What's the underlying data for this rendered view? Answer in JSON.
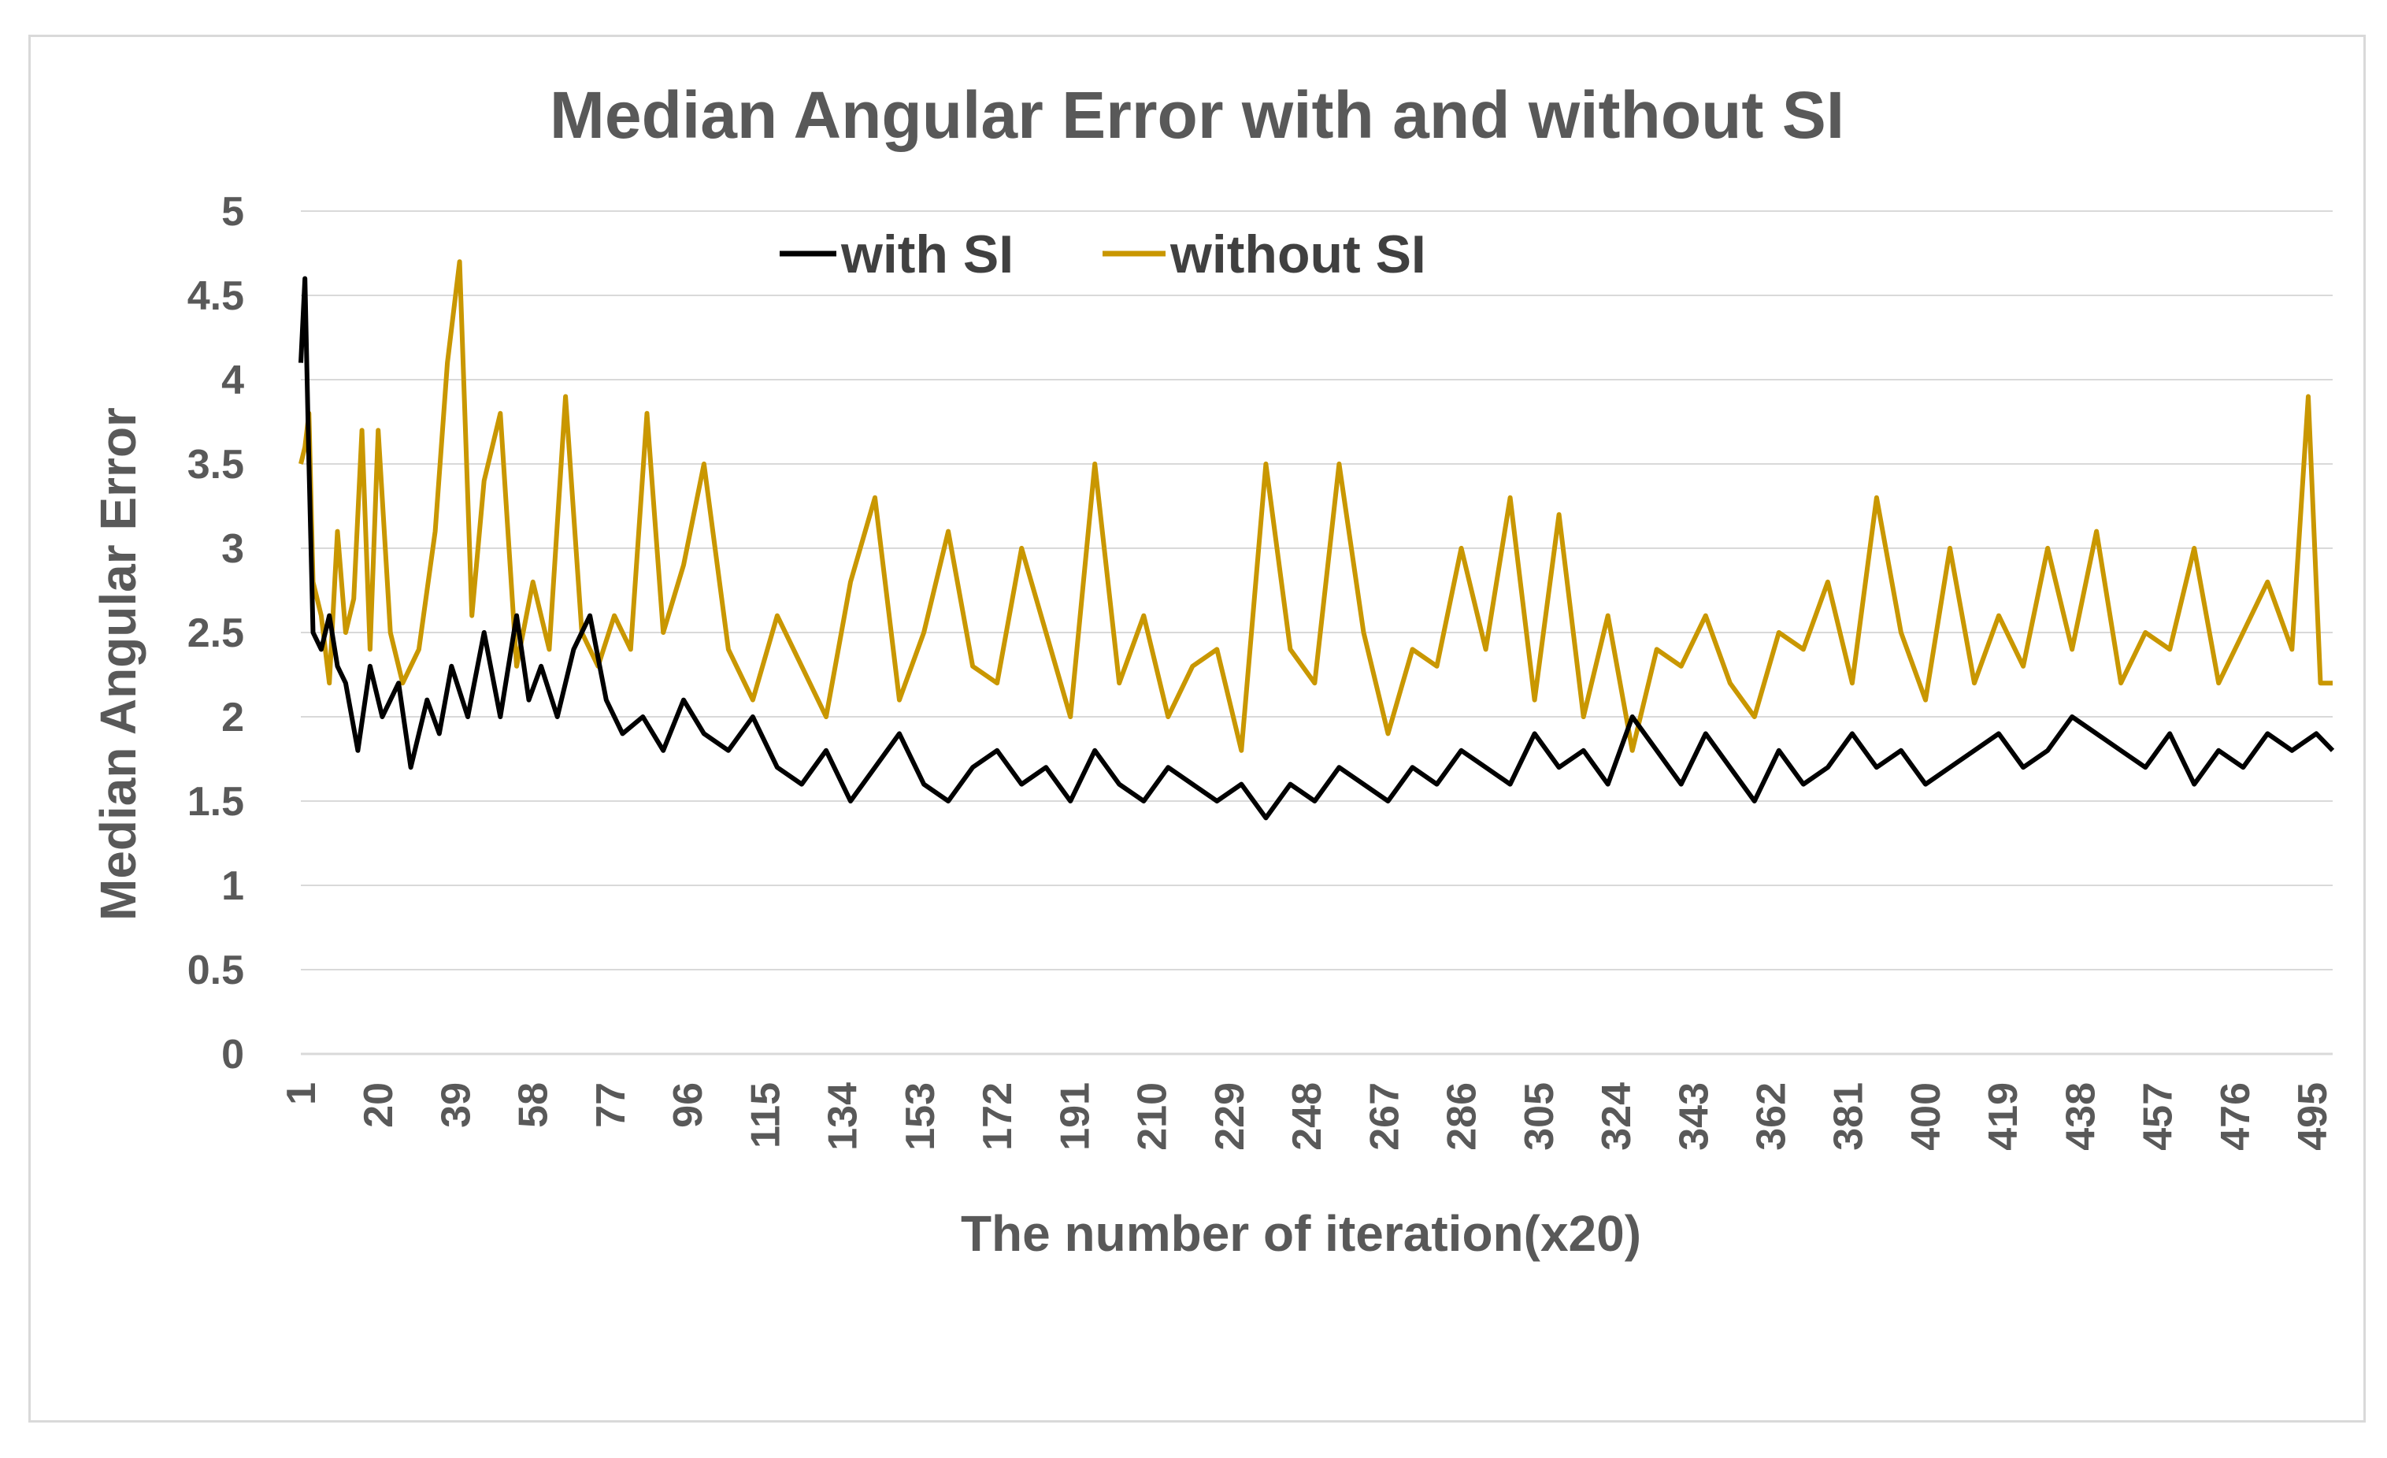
{
  "chart_data": {
    "type": "line",
    "title": "Median Angular Error with and without SI",
    "xlabel": "The number of iteration(x20)",
    "ylabel": "Median  Angular Error",
    "ylim": [
      0,
      5
    ],
    "yticks": [
      "0",
      "0.5",
      "1",
      "1.5",
      "2",
      "2.5",
      "3",
      "3.5",
      "4",
      "4.5",
      "5"
    ],
    "xlim": [
      1,
      500
    ],
    "xticks": [
      "1",
      "20",
      "39",
      "58",
      "77",
      "96",
      "115",
      "134",
      "153",
      "172",
      "191",
      "210",
      "229",
      "248",
      "267",
      "286",
      "305",
      "324",
      "343",
      "362",
      "381",
      "400",
      "419",
      "438",
      "457",
      "476",
      "495"
    ],
    "grid": true,
    "legend_position": "top",
    "series": [
      {
        "name": "with SI",
        "color": "#000000",
        "x": [
          1,
          2,
          3,
          4,
          6,
          8,
          10,
          12,
          15,
          18,
          21,
          25,
          28,
          32,
          35,
          38,
          42,
          46,
          50,
          54,
          57,
          60,
          64,
          68,
          72,
          76,
          80,
          85,
          90,
          95,
          100,
          106,
          112,
          118,
          124,
          130,
          136,
          142,
          148,
          154,
          160,
          166,
          172,
          178,
          184,
          190,
          196,
          202,
          208,
          214,
          220,
          226,
          232,
          238,
          244,
          250,
          256,
          262,
          268,
          274,
          280,
          286,
          292,
          298,
          304,
          310,
          316,
          322,
          328,
          334,
          340,
          346,
          352,
          358,
          364,
          370,
          376,
          382,
          388,
          394,
          400,
          406,
          412,
          418,
          424,
          430,
          436,
          442,
          448,
          454,
          460,
          466,
          472,
          478,
          484,
          490,
          496,
          500
        ],
        "y": [
          4.1,
          4.6,
          3.5,
          2.5,
          2.4,
          2.6,
          2.3,
          2.2,
          1.8,
          2.3,
          2.0,
          2.2,
          1.7,
          2.1,
          1.9,
          2.3,
          2.0,
          2.5,
          2.0,
          2.6,
          2.1,
          2.3,
          2.0,
          2.4,
          2.6,
          2.1,
          1.9,
          2.0,
          1.8,
          2.1,
          1.9,
          1.8,
          2.0,
          1.7,
          1.6,
          1.8,
          1.5,
          1.7,
          1.9,
          1.6,
          1.5,
          1.7,
          1.8,
          1.6,
          1.7,
          1.5,
          1.8,
          1.6,
          1.5,
          1.7,
          1.6,
          1.5,
          1.6,
          1.4,
          1.6,
          1.5,
          1.7,
          1.6,
          1.5,
          1.7,
          1.6,
          1.8,
          1.7,
          1.6,
          1.9,
          1.7,
          1.8,
          1.6,
          2.0,
          1.8,
          1.6,
          1.9,
          1.7,
          1.5,
          1.8,
          1.6,
          1.7,
          1.9,
          1.7,
          1.8,
          1.6,
          1.7,
          1.8,
          1.9,
          1.7,
          1.8,
          2.0,
          1.9,
          1.8,
          1.7,
          1.9,
          1.6,
          1.8,
          1.7,
          1.9,
          1.8,
          1.9,
          1.8
        ]
      },
      {
        "name": "without SI",
        "color": "#c99700",
        "x": [
          1,
          2,
          3,
          4,
          6,
          8,
          10,
          12,
          14,
          16,
          18,
          20,
          23,
          26,
          30,
          34,
          37,
          40,
          43,
          46,
          50,
          54,
          58,
          62,
          66,
          70,
          74,
          78,
          82,
          86,
          90,
          95,
          100,
          106,
          112,
          118,
          124,
          130,
          136,
          142,
          148,
          154,
          160,
          166,
          172,
          178,
          184,
          190,
          196,
          202,
          208,
          214,
          220,
          226,
          232,
          238,
          244,
          250,
          256,
          262,
          268,
          274,
          280,
          286,
          292,
          298,
          304,
          310,
          316,
          322,
          328,
          334,
          340,
          346,
          352,
          358,
          364,
          370,
          376,
          382,
          388,
          394,
          400,
          406,
          412,
          418,
          424,
          430,
          436,
          442,
          448,
          454,
          460,
          466,
          472,
          478,
          484,
          490,
          494,
          497,
          500
        ],
        "y": [
          3.5,
          3.6,
          3.8,
          2.8,
          2.6,
          2.2,
          3.1,
          2.5,
          2.7,
          3.7,
          2.4,
          3.7,
          2.5,
          2.2,
          2.4,
          3.1,
          4.1,
          4.7,
          2.6,
          3.4,
          3.8,
          2.3,
          2.8,
          2.4,
          3.9,
          2.5,
          2.3,
          2.6,
          2.4,
          3.8,
          2.5,
          2.9,
          3.5,
          2.4,
          2.1,
          2.6,
          2.3,
          2.0,
          2.8,
          3.3,
          2.1,
          2.5,
          3.1,
          2.3,
          2.2,
          3.0,
          2.5,
          2.0,
          3.5,
          2.2,
          2.6,
          2.0,
          2.3,
          2.4,
          1.8,
          3.5,
          2.4,
          2.2,
          3.5,
          2.5,
          1.9,
          2.4,
          2.3,
          3.0,
          2.4,
          3.3,
          2.1,
          3.2,
          2.0,
          2.6,
          1.8,
          2.4,
          2.3,
          2.6,
          2.2,
          2.0,
          2.5,
          2.4,
          2.8,
          2.2,
          3.3,
          2.5,
          2.1,
          3.0,
          2.2,
          2.6,
          2.3,
          3.0,
          2.4,
          3.1,
          2.2,
          2.5,
          2.4,
          3.0,
          2.2,
          2.5,
          2.8,
          2.4,
          3.9,
          2.2,
          2.2
        ]
      }
    ]
  }
}
